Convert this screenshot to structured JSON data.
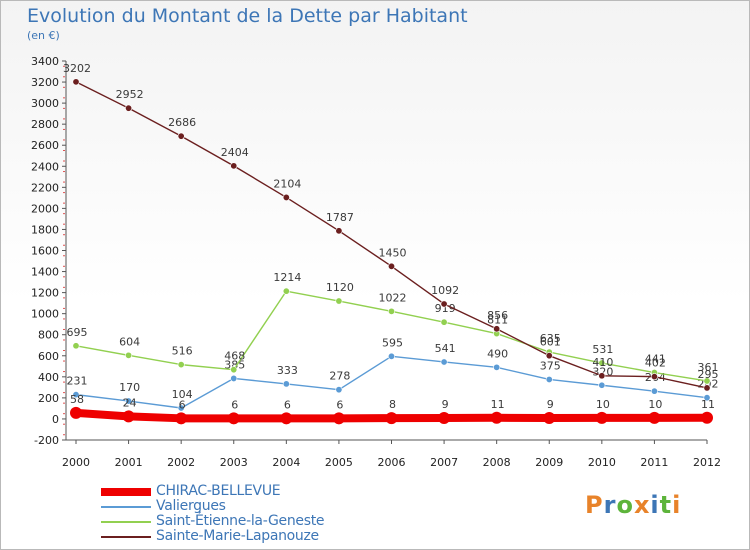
{
  "title": "Evolution du Montant de la Dette par Habitant",
  "subtitle": "(en €)",
  "logo": {
    "text": "Proxiti",
    "colors": [
      "#e8832a",
      "#3d76b6",
      "#5db43b",
      "#e8832a",
      "#3d76b6",
      "#5db43b",
      "#e8832a"
    ]
  },
  "chart_data": {
    "type": "line",
    "x": [
      "2000",
      "2001",
      "2002",
      "2003",
      "2004",
      "2005",
      "2006",
      "2007",
      "2008",
      "2009",
      "2010",
      "2011",
      "2012"
    ],
    "ylim": [
      -200,
      3400
    ],
    "yticks": [
      -200,
      0,
      200,
      400,
      600,
      800,
      1000,
      1200,
      1400,
      1600,
      1800,
      2000,
      2200,
      2400,
      2600,
      2800,
      3000,
      3200,
      3400
    ],
    "grid": false,
    "legend": "bottom-left",
    "series": [
      {
        "name": "CHIRAC-BELLEVUE",
        "color": "#ee0000",
        "values": [
          58,
          24,
          6,
          6,
          6,
          6,
          8,
          9,
          11,
          9,
          10,
          10,
          11
        ],
        "thick": true
      },
      {
        "name": "Valiergues",
        "color": "#5b9bd5",
        "values": [
          231,
          170,
          104,
          385,
          333,
          278,
          595,
          541,
          490,
          375,
          320,
          264,
          202
        ],
        "thick": false
      },
      {
        "name": "Saint-Étienne-la-Geneste",
        "color": "#92d050",
        "values": [
          695,
          604,
          516,
          468,
          1214,
          1120,
          1022,
          919,
          811,
          635,
          531,
          441,
          361
        ],
        "thick": false
      },
      {
        "name": "Sainte-Marie-Lapanouze",
        "color": "#6b1f1f",
        "values": [
          3202,
          2952,
          2686,
          2404,
          2104,
          1787,
          1450,
          1092,
          856,
          601,
          410,
          402,
          295
        ],
        "thick": false
      }
    ]
  }
}
